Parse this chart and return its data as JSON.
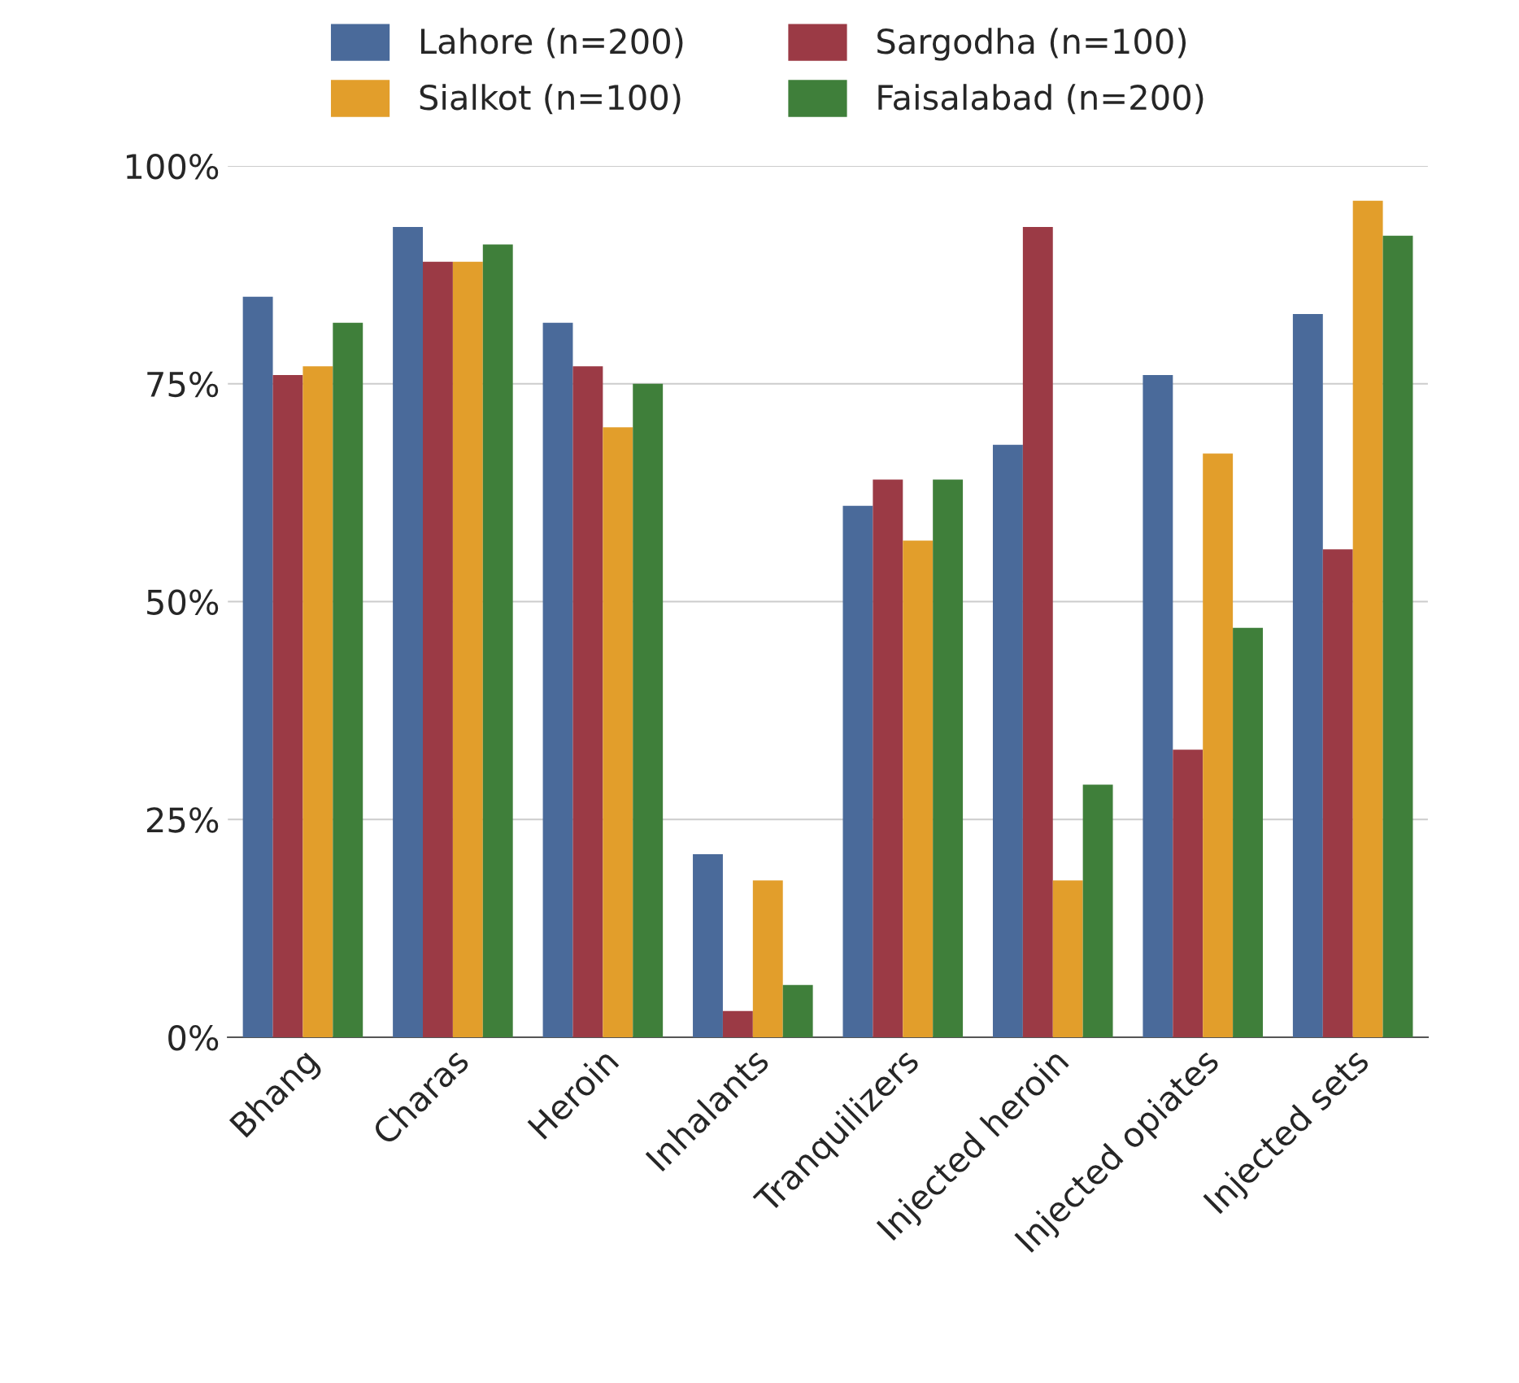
{
  "chart_data": {
    "type": "bar",
    "categories": [
      "Bhang",
      "Charas",
      "Heroin",
      "Inhalants",
      "Tranquilizers",
      "Injected heroin",
      "Injected opiates",
      "Injected sets"
    ],
    "series": [
      {
        "name": "Lahore (n=200)",
        "color": "#4a6a9a",
        "values": [
          85,
          93,
          82,
          21,
          61,
          68,
          76,
          83
        ]
      },
      {
        "name": "Sargodha (n=100)",
        "color": "#9b3a45",
        "values": [
          76,
          89,
          77,
          3,
          64,
          93,
          33,
          56
        ]
      },
      {
        "name": "Sialkot (n=100)",
        "color": "#e29e2b",
        "values": [
          77,
          89,
          70,
          18,
          57,
          18,
          67,
          96
        ]
      },
      {
        "name": "Faisalabad (n=200)",
        "color": "#3f7f3a",
        "values": [
          82,
          91,
          75,
          6,
          64,
          29,
          47,
          92
        ]
      }
    ],
    "ylim": [
      0,
      100
    ],
    "yticks": [
      {
        "value": 0,
        "label": "0%"
      },
      {
        "value": 25,
        "label": "25%"
      },
      {
        "value": 50,
        "label": "50%"
      },
      {
        "value": 75,
        "label": "75%"
      },
      {
        "value": 100,
        "label": "100%"
      }
    ],
    "grid": "y",
    "legend": "top"
  }
}
